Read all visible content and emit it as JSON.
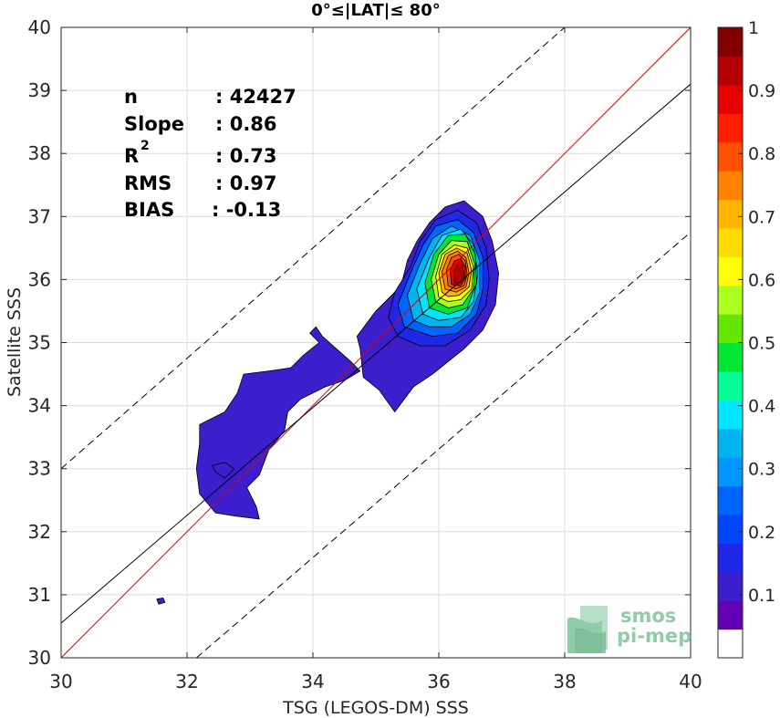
{
  "chart_data": {
    "type": "contour",
    "title": "0°≤|LAT|≤ 80°",
    "xlabel": "TSG (LEGOS-DM) SSS",
    "ylabel": "Satellite SSS",
    "xlim": [
      30,
      40
    ],
    "ylim": [
      30,
      40
    ],
    "x_ticks": [
      30,
      32,
      34,
      36,
      38,
      40
    ],
    "y_ticks": [
      30,
      31,
      32,
      33,
      34,
      35,
      36,
      37,
      38,
      39,
      40
    ],
    "grid": true,
    "stats": {
      "n_label": "n",
      "n_value": ": 42427",
      "slope_label": "Slope",
      "slope_value": ": 0.86",
      "r2_label": "R",
      "r2_sup": "2",
      "r2_value": ": 0.73",
      "rms_label": "RMS",
      "rms_value": ": 0.97",
      "bias_label": "BIAS",
      "bias_value": ": -0.13"
    },
    "lines": [
      {
        "name": "1:1",
        "color": "#e00000",
        "dash": false,
        "points": [
          [
            30,
            30
          ],
          [
            40,
            40
          ]
        ]
      },
      {
        "name": "regression",
        "color": "#000000",
        "dash": false,
        "points": [
          [
            30,
            30.55
          ],
          [
            40,
            39.1
          ]
        ]
      },
      {
        "name": "upper",
        "color": "#000000",
        "dash": true,
        "points": [
          [
            30,
            33.0
          ],
          [
            38.0,
            40.0
          ]
        ]
      },
      {
        "name": "lower",
        "color": "#000000",
        "dash": true,
        "points": [
          [
            32.15,
            30.0
          ],
          [
            40,
            36.75
          ]
        ]
      }
    ],
    "colorbar": {
      "ticks": [
        "0.1",
        "0.2",
        "0.3",
        "0.4",
        "0.5",
        "0.6",
        "0.7",
        "0.8",
        "0.9",
        "1"
      ],
      "colors": [
        "#ffffff",
        "#6400b4",
        "#3c1ecc",
        "#1e28e6",
        "#0046ff",
        "#0064ff",
        "#0096ff",
        "#00b4f0",
        "#00e6ff",
        "#00ff96",
        "#00e632",
        "#64e600",
        "#aaff1e",
        "#ffff00",
        "#ffdc00",
        "#ffb400",
        "#ff8200",
        "#ff5000",
        "#ff1e00",
        "#e60000",
        "#b40000",
        "#820000"
      ]
    },
    "contours": [
      {
        "level": 0.05,
        "color": "#3c1ecc",
        "points": [
          [
            33.15,
            32.2
          ],
          [
            32.75,
            32.25
          ],
          [
            32.45,
            32.3
          ],
          [
            32.2,
            32.6
          ],
          [
            32.15,
            33.0
          ],
          [
            32.2,
            33.4
          ],
          [
            32.2,
            33.7
          ],
          [
            32.6,
            33.9
          ],
          [
            32.8,
            34.2
          ],
          [
            32.9,
            34.5
          ],
          [
            33.3,
            34.55
          ],
          [
            33.65,
            34.6
          ],
          [
            33.85,
            34.8
          ],
          [
            34.1,
            35.0
          ],
          [
            33.95,
            35.15
          ],
          [
            34.05,
            35.25
          ],
          [
            34.15,
            35.1
          ],
          [
            34.6,
            34.7
          ],
          [
            34.75,
            34.55
          ],
          [
            34.5,
            34.4
          ],
          [
            34.2,
            34.3
          ],
          [
            33.8,
            34.1
          ],
          [
            33.6,
            33.9
          ],
          [
            33.55,
            33.6
          ],
          [
            33.3,
            33.3
          ],
          [
            33.15,
            32.9
          ],
          [
            32.95,
            32.7
          ],
          [
            33.1,
            32.4
          ]
        ]
      },
      {
        "level": 0.05,
        "color": "#3c1ecc",
        "points": [
          [
            35.3,
            33.9
          ],
          [
            35.05,
            34.25
          ],
          [
            34.8,
            34.45
          ],
          [
            34.75,
            34.9
          ],
          [
            34.7,
            35.1
          ],
          [
            35.0,
            35.5
          ],
          [
            35.4,
            35.9
          ],
          [
            35.5,
            36.3
          ],
          [
            35.65,
            36.6
          ],
          [
            35.85,
            36.9
          ],
          [
            36.1,
            37.15
          ],
          [
            36.4,
            37.25
          ],
          [
            36.7,
            37.0
          ],
          [
            36.85,
            36.6
          ],
          [
            36.95,
            36.1
          ],
          [
            36.9,
            35.6
          ],
          [
            36.7,
            35.2
          ],
          [
            36.4,
            34.9
          ],
          [
            35.9,
            34.5
          ],
          [
            35.6,
            34.3
          ]
        ]
      },
      {
        "level": 0.05,
        "color": "#3c1ecc",
        "points": [
          [
            32.45,
            32.95
          ],
          [
            32.6,
            32.85
          ],
          [
            32.75,
            33.0
          ],
          [
            32.6,
            33.1
          ],
          [
            32.4,
            33.05
          ]
        ]
      },
      {
        "level": 0.05,
        "color": "#3c1ecc",
        "points": [
          [
            31.55,
            30.85
          ],
          [
            31.65,
            30.88
          ],
          [
            31.62,
            30.95
          ],
          [
            31.52,
            30.93
          ]
        ]
      },
      {
        "level": 0.15,
        "color": "#1e28e6",
        "points": [
          [
            35.35,
            35.1
          ],
          [
            35.2,
            35.4
          ],
          [
            35.3,
            35.8
          ],
          [
            35.55,
            36.2
          ],
          [
            35.7,
            36.6
          ],
          [
            35.95,
            36.95
          ],
          [
            36.3,
            37.1
          ],
          [
            36.6,
            36.9
          ],
          [
            36.75,
            36.5
          ],
          [
            36.8,
            36.0
          ],
          [
            36.75,
            35.6
          ],
          [
            36.5,
            35.2
          ],
          [
            36.1,
            34.95
          ],
          [
            35.7,
            34.95
          ]
        ]
      },
      {
        "level": 0.25,
        "color": "#0064ff",
        "points": [
          [
            35.45,
            35.25
          ],
          [
            35.35,
            35.6
          ],
          [
            35.55,
            36.1
          ],
          [
            35.75,
            36.55
          ],
          [
            35.95,
            36.85
          ],
          [
            36.3,
            36.95
          ],
          [
            36.55,
            36.75
          ],
          [
            36.7,
            36.35
          ],
          [
            36.7,
            35.85
          ],
          [
            36.6,
            35.45
          ],
          [
            36.3,
            35.15
          ],
          [
            35.9,
            35.1
          ]
        ]
      },
      {
        "level": 0.35,
        "color": "#00b4f0",
        "points": [
          [
            35.6,
            35.35
          ],
          [
            35.5,
            35.75
          ],
          [
            35.7,
            36.25
          ],
          [
            35.9,
            36.65
          ],
          [
            36.2,
            36.85
          ],
          [
            36.5,
            36.7
          ],
          [
            36.65,
            36.3
          ],
          [
            36.65,
            35.8
          ],
          [
            36.5,
            35.45
          ],
          [
            36.2,
            35.25
          ],
          [
            35.85,
            35.25
          ]
        ]
      },
      {
        "level": 0.45,
        "color": "#00e6ff",
        "points": [
          [
            35.75,
            35.45
          ],
          [
            35.65,
            35.85
          ],
          [
            35.85,
            36.35
          ],
          [
            36.05,
            36.7
          ],
          [
            36.35,
            36.8
          ],
          [
            36.55,
            36.55
          ],
          [
            36.62,
            36.1
          ],
          [
            36.55,
            35.65
          ],
          [
            36.35,
            35.4
          ],
          [
            36.0,
            35.35
          ]
        ]
      },
      {
        "level": 0.5,
        "color": "#00e632",
        "points": [
          [
            35.85,
            35.55
          ],
          [
            35.78,
            35.95
          ],
          [
            35.92,
            36.4
          ],
          [
            36.15,
            36.7
          ],
          [
            36.42,
            36.72
          ],
          [
            36.58,
            36.4
          ],
          [
            36.6,
            35.95
          ],
          [
            36.45,
            35.55
          ],
          [
            36.15,
            35.45
          ]
        ]
      },
      {
        "level": 0.6,
        "color": "#aaff1e",
        "points": [
          [
            35.95,
            35.65
          ],
          [
            35.88,
            36.0
          ],
          [
            36.0,
            36.4
          ],
          [
            36.2,
            36.62
          ],
          [
            36.45,
            36.6
          ],
          [
            36.57,
            36.25
          ],
          [
            36.55,
            35.85
          ],
          [
            36.38,
            35.6
          ],
          [
            36.15,
            35.55
          ]
        ]
      },
      {
        "level": 0.65,
        "color": "#ffff00",
        "points": [
          [
            36.0,
            35.72
          ],
          [
            35.95,
            36.05
          ],
          [
            36.05,
            36.4
          ],
          [
            36.25,
            36.55
          ],
          [
            36.45,
            36.5
          ],
          [
            36.55,
            36.2
          ],
          [
            36.52,
            35.85
          ],
          [
            36.35,
            35.68
          ],
          [
            36.15,
            35.65
          ]
        ]
      },
      {
        "level": 0.7,
        "color": "#ffb400",
        "points": [
          [
            36.05,
            35.8
          ],
          [
            36.0,
            36.1
          ],
          [
            36.1,
            36.4
          ],
          [
            36.28,
            36.5
          ],
          [
            36.45,
            36.42
          ],
          [
            36.52,
            36.15
          ],
          [
            36.48,
            35.88
          ],
          [
            36.32,
            35.75
          ],
          [
            36.15,
            35.73
          ]
        ]
      },
      {
        "level": 0.8,
        "color": "#ff8200",
        "points": [
          [
            36.1,
            35.85
          ],
          [
            36.05,
            36.12
          ],
          [
            36.15,
            36.38
          ],
          [
            36.3,
            36.45
          ],
          [
            36.43,
            36.35
          ],
          [
            36.48,
            36.1
          ],
          [
            36.43,
            35.88
          ],
          [
            36.28,
            35.8
          ]
        ]
      },
      {
        "level": 0.85,
        "color": "#ff5000",
        "points": [
          [
            36.15,
            35.9
          ],
          [
            36.12,
            36.15
          ],
          [
            36.2,
            36.35
          ],
          [
            36.32,
            36.4
          ],
          [
            36.42,
            36.3
          ],
          [
            36.45,
            36.08
          ],
          [
            36.4,
            35.9
          ],
          [
            36.27,
            35.85
          ]
        ]
      },
      {
        "level": 0.9,
        "color": "#e60000",
        "points": [
          [
            36.2,
            35.92
          ],
          [
            36.18,
            36.15
          ],
          [
            36.25,
            36.3
          ],
          [
            36.35,
            36.33
          ],
          [
            36.42,
            36.2
          ],
          [
            36.42,
            36.02
          ],
          [
            36.35,
            35.9
          ]
        ]
      },
      {
        "level": 0.95,
        "color": "#b40000",
        "points": [
          [
            36.25,
            35.95
          ],
          [
            36.24,
            36.12
          ],
          [
            36.3,
            36.25
          ],
          [
            36.37,
            36.24
          ],
          [
            36.4,
            36.08
          ],
          [
            36.35,
            35.95
          ]
        ]
      }
    ]
  },
  "logo": {
    "line1": "smos",
    "line2": "pi-mep"
  }
}
